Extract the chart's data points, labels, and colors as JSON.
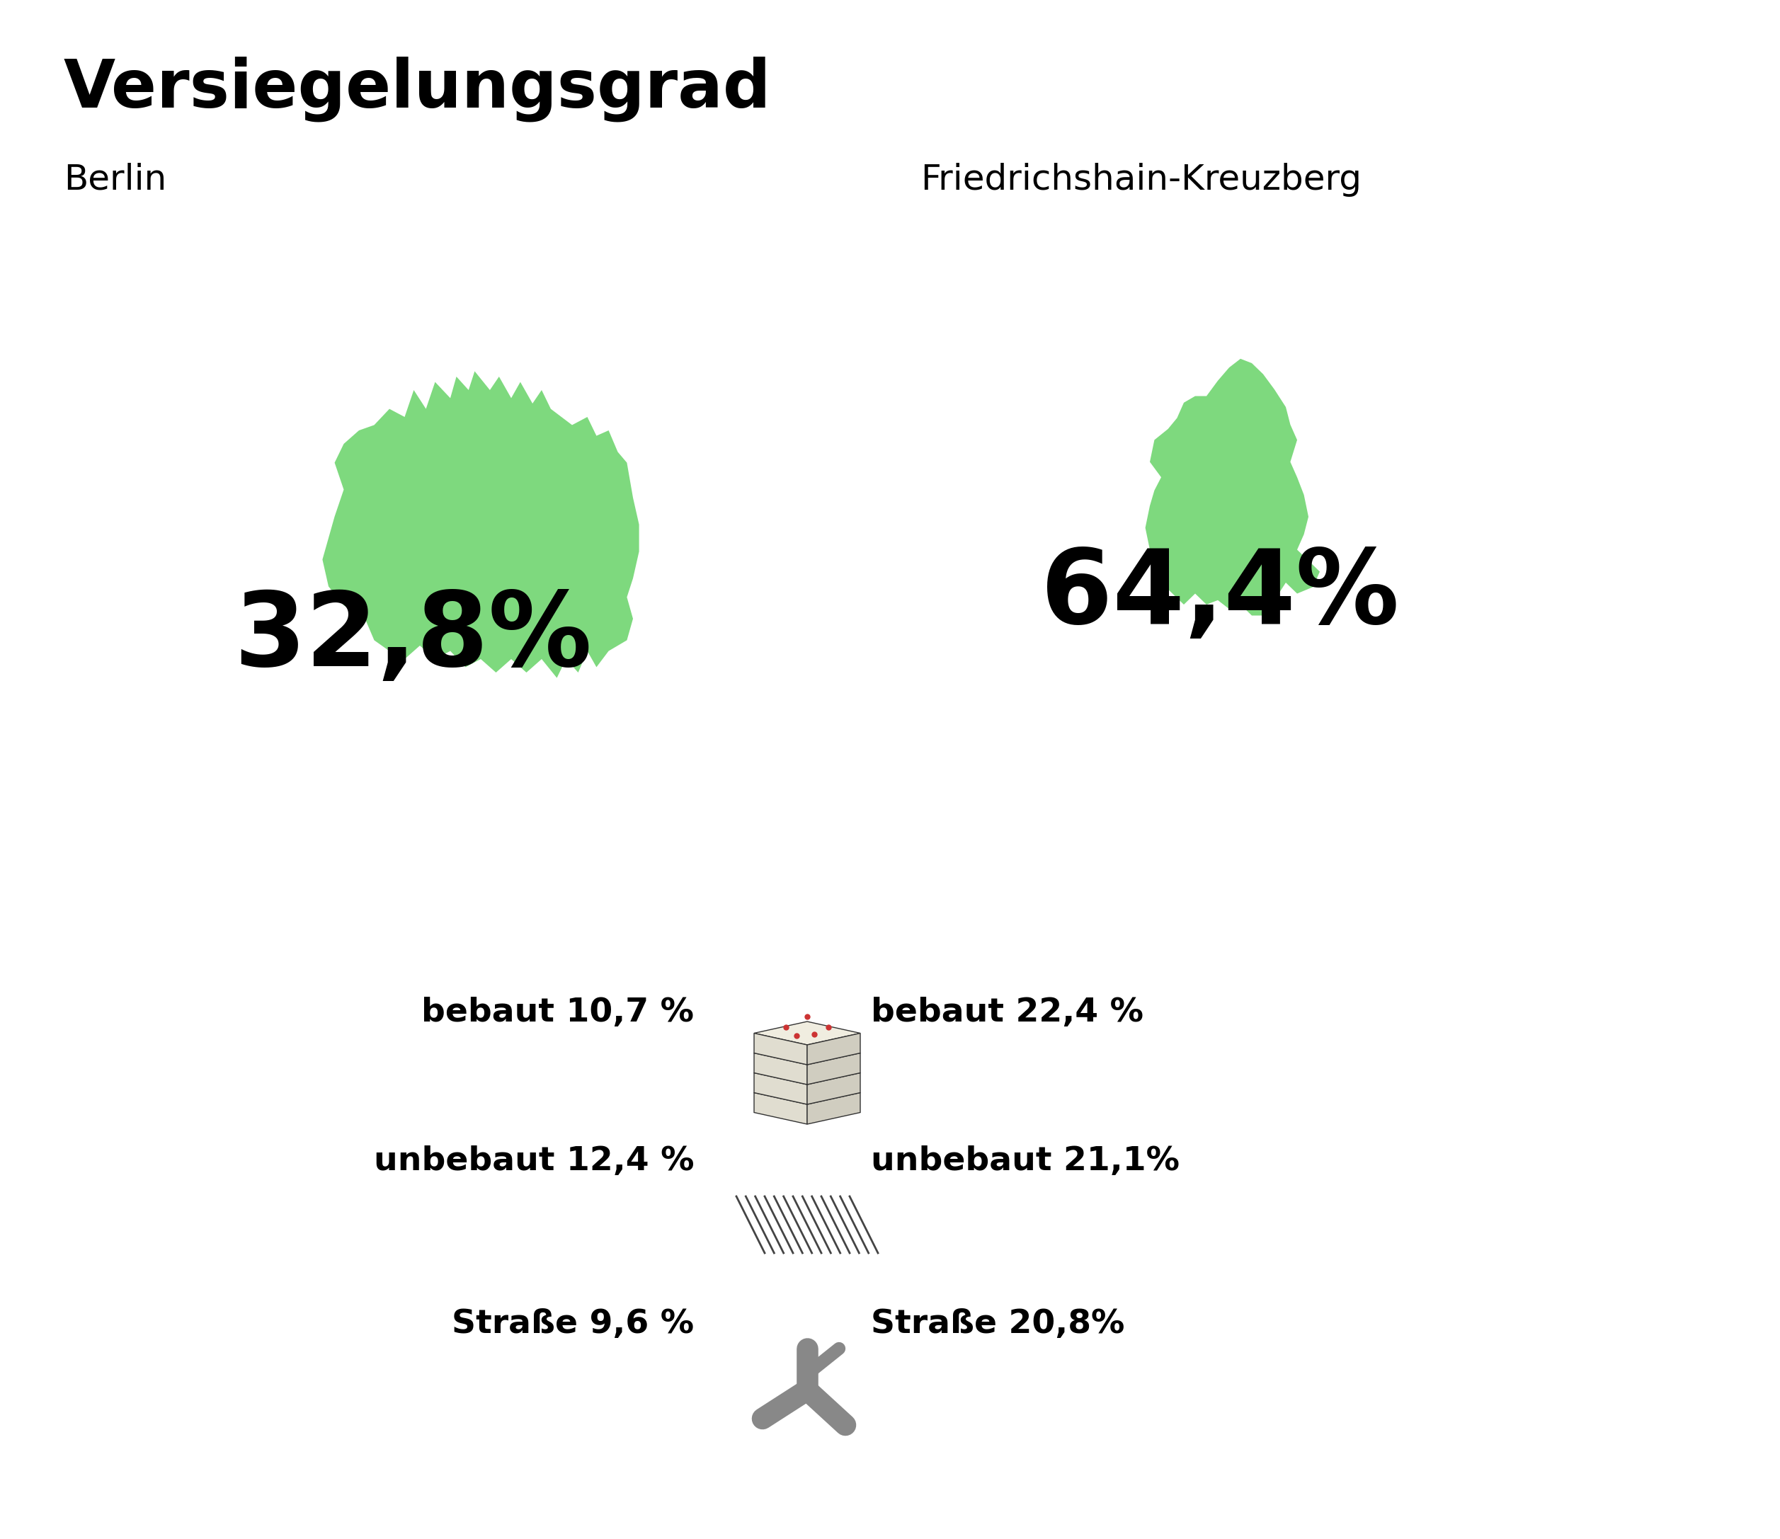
{
  "title": "Versiegelungsgrad",
  "bg_color": "#ffffff",
  "title_fontsize": 68,
  "title_fontweight": "bold",
  "map_color": "#7ed97e",
  "region1_label": "Berlin",
  "region1_value": "32,8%",
  "region2_label": "Friedrichshain-Kreuzberg",
  "region2_value": "64,4%",
  "large_pct_fontsize": 105,
  "large_pct_fontweight": "bold",
  "stats": [
    {
      "label": "bebaut",
      "berlin": "10,7 %",
      "fk": "22,4 %"
    },
    {
      "label": "unbebaut",
      "berlin": "12,4 %",
      "fk": "21,1%"
    },
    {
      "label": "Straße",
      "berlin": "9,6 %",
      "fk": "20,8%"
    }
  ],
  "stats_fontsize": 34,
  "stats_fontweight": "bold",
  "label_color": "#000000",
  "region_label_fontsize": 36,
  "region_label_fontweight": "normal"
}
